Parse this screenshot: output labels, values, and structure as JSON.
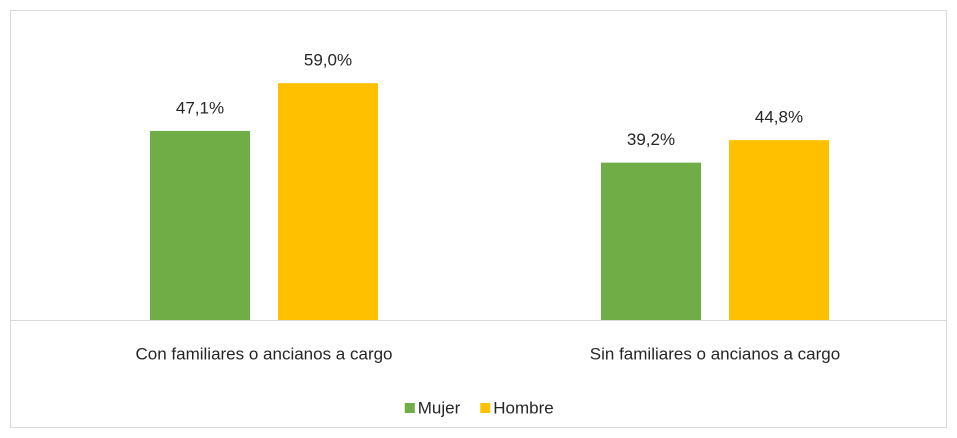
{
  "chart_data": {
    "type": "bar",
    "categories": [
      "Con familiares o ancianos a cargo",
      "Sin familiares o ancianos a cargo"
    ],
    "series": [
      {
        "name": "Mujer",
        "color": "#70ad47",
        "values": [
          47.1,
          39.2
        ],
        "value_labels": [
          "47,1%",
          "39,2%"
        ]
      },
      {
        "name": "Hombre",
        "color": "#ffc000",
        "values": [
          59.0,
          44.8
        ],
        "value_labels": [
          "59,0%",
          "44,8%"
        ]
      }
    ],
    "ylim": [
      0,
      70
    ],
    "legend": "bottom"
  }
}
